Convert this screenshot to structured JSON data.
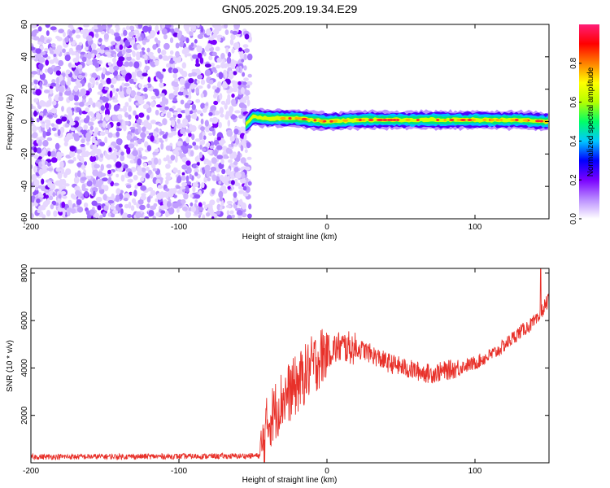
{
  "title": "GN05.2025.209.19.34.E29",
  "chart_data": [
    {
      "type": "heatmap",
      "xlabel": "Height of straight line (km)",
      "ylabel": "Frequency (Hz)",
      "xlim": [
        -200,
        150
      ],
      "ylim": [
        -60,
        60
      ],
      "x_ticks": [
        "-200",
        "-100",
        "0",
        "100"
      ],
      "x_tick_values": [
        -200,
        -100,
        0,
        100
      ],
      "y_ticks": [
        "-60",
        "-40",
        "-20",
        "0",
        "20",
        "40",
        "60"
      ],
      "y_tick_values": [
        -60,
        -40,
        -20,
        0,
        20,
        40,
        60
      ],
      "noise_region_x": [
        -200,
        -52
      ],
      "signal_start_x": -55,
      "signal_band_center": [
        [
          -55,
          -2
        ],
        [
          -50,
          3
        ],
        [
          -40,
          2
        ],
        [
          -30,
          2
        ],
        [
          -20,
          2
        ],
        [
          -10,
          1
        ],
        [
          0,
          0
        ],
        [
          20,
          1
        ],
        [
          50,
          1
        ],
        [
          80,
          1
        ],
        [
          100,
          1
        ],
        [
          130,
          1
        ],
        [
          150,
          0
        ]
      ],
      "signal_band_halfwidth_hz": 3,
      "colorbar": {
        "label": "Normalized spectral amplitude",
        "ticks": [
          "0.0",
          "0.2",
          "0.4",
          "0.6",
          "0.8"
        ],
        "tick_values": [
          0,
          0.2,
          0.4,
          0.6,
          0.8
        ],
        "range": [
          0,
          1
        ],
        "colors": [
          "#ffffff",
          "#b98cff",
          "#7a00ff",
          "#0000ff",
          "#00c8ff",
          "#00ff66",
          "#b4ff00",
          "#ffff00",
          "#ff8000",
          "#ff0000",
          "#ff1e78"
        ]
      }
    },
    {
      "type": "line",
      "xlabel": "Height of straight line (km)",
      "ylabel": "SNR (10 * v/v)",
      "xlim": [
        -200,
        150
      ],
      "ylim": [
        0,
        8200
      ],
      "x_ticks": [
        "-200",
        "-100",
        "0",
        "100"
      ],
      "x_tick_values": [
        -200,
        -100,
        0,
        100
      ],
      "y_ticks": [
        "2000",
        "4000",
        "6000",
        "8000"
      ],
      "y_tick_values": [
        2000,
        4000,
        6000,
        8000
      ],
      "color": "#e8312a",
      "trend": [
        [
          -200,
          250
        ],
        [
          -60,
          280
        ],
        [
          -45,
          300
        ],
        [
          -40,
          1700
        ],
        [
          -30,
          2700
        ],
        [
          -20,
          3300
        ],
        [
          -10,
          4100
        ],
        [
          0,
          4700
        ],
        [
          10,
          4900
        ],
        [
          25,
          4750
        ],
        [
          40,
          4250
        ],
        [
          55,
          3950
        ],
        [
          70,
          3750
        ],
        [
          85,
          3950
        ],
        [
          100,
          4200
        ],
        [
          115,
          4700
        ],
        [
          130,
          5500
        ],
        [
          143,
          6050
        ],
        [
          145,
          6400
        ],
        [
          150,
          6900
        ]
      ]
    }
  ]
}
